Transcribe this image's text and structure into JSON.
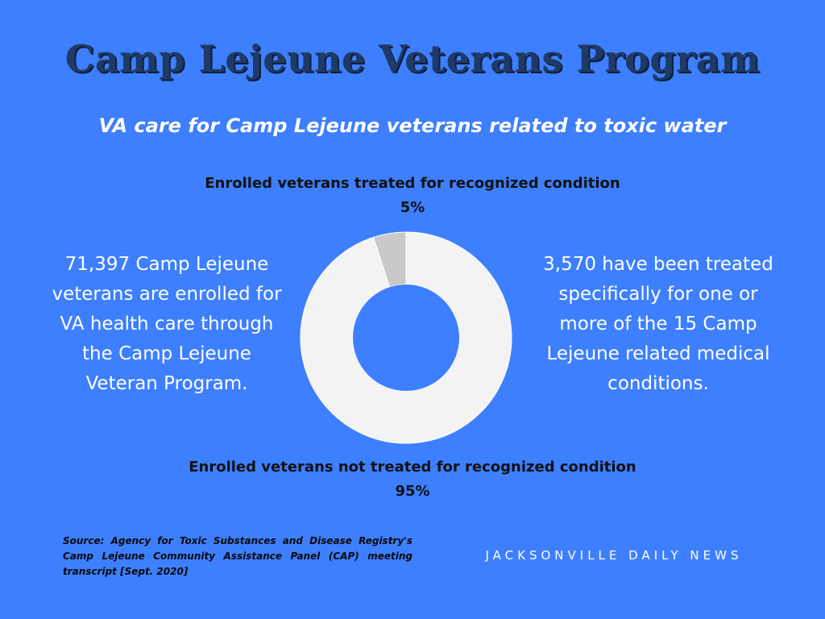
{
  "title": "Camp Lejeune Veterans Program",
  "subtitle": "VA care for Camp Lejeune veterans related to toxic water",
  "left_text": "71,397 Camp Lejeune veterans are enrolled for VA health care through the Camp Lejeune Veteran Program.",
  "right_text": "3,570 have been treated specifically for one or more of the 15 Camp Lejeune related medical conditions.",
  "source": "Source: Agency for Toxic Substances and Disease Registry's Camp Lejeune Community Assistance Panel (CAP) meeting transcript [Sept. 2020]",
  "brand": "JACKSONVILLE DAILY NEWS",
  "colors": {
    "background": "#3d7fff",
    "title": "#1f3a66",
    "treated": "#c9c9c9",
    "not_treated": "#f3f3f3"
  },
  "chart_data": {
    "type": "pie",
    "donut": true,
    "title": "",
    "labels": [
      "Enrolled veterans treated for recognized condition",
      "Enrolled veterans not treated for recognized condition"
    ],
    "values": [
      5,
      95
    ],
    "value_labels": [
      "5%",
      "95%"
    ],
    "colors": [
      "#c9c9c9",
      "#f3f3f3"
    ]
  }
}
